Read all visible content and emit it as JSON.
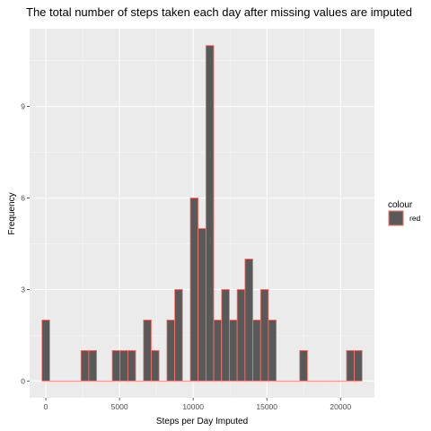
{
  "chart_data": {
    "type": "bar",
    "title": "The total number of steps taken each day after missing values are imputed",
    "xlabel": "Steps per Day Imputed",
    "ylabel": "Frequency",
    "x_ticks": [
      0,
      5000,
      10000,
      15000,
      20000
    ],
    "x_tick_labels": [
      "0",
      "5000",
      "10000",
      "15000",
      "20000"
    ],
    "y_ticks": [
      0,
      3,
      6,
      9
    ],
    "y_tick_labels": [
      "0",
      "3",
      "6",
      "9"
    ],
    "xlim": [
      -1100,
      22300
    ],
    "ylim": [
      -0.55,
      11.55
    ],
    "bin_width": 530,
    "bin_centers": [
      0,
      530,
      1060,
      1590,
      2120,
      2650,
      3180,
      3710,
      4240,
      4770,
      5300,
      5830,
      6360,
      6890,
      7420,
      7950,
      8480,
      9010,
      9540,
      10070,
      10600,
      11130,
      11660,
      12190,
      12720,
      13250,
      13780,
      14310,
      14840,
      15370,
      15900,
      16430,
      16960,
      17490,
      18020,
      18550,
      19080,
      19610,
      20140,
      20670,
      21200
    ],
    "counts": [
      2,
      0,
      0,
      0,
      0,
      1,
      1,
      0,
      0,
      1,
      1,
      1,
      0,
      2,
      1,
      0,
      2,
      3,
      0,
      6,
      5,
      11,
      2,
      3,
      2,
      3,
      4,
      2,
      3,
      2,
      0,
      0,
      0,
      1,
      0,
      0,
      0,
      0,
      0,
      1,
      1
    ],
    "grid": true,
    "legend_position": "right",
    "legend_title": "colour",
    "legend_entries": [
      {
        "label": "red",
        "color": "#595959"
      }
    ],
    "bar_fill": "#595959",
    "bar_outline": "#F8766D",
    "panel_background": "#EBEBEB"
  }
}
